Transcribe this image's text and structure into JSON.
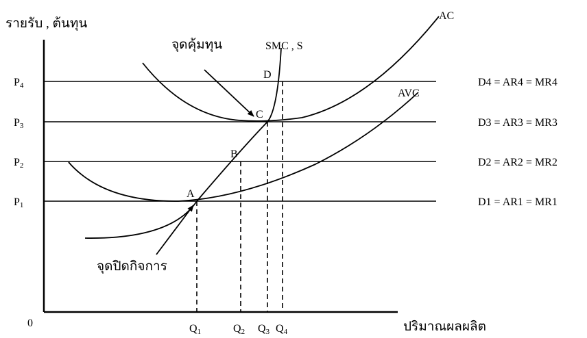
{
  "axes": {
    "y_label": "รายรับ , ต้นทุน",
    "x_label": "ปริมาณผลผลิต",
    "origin": "0"
  },
  "price_levels": [
    {
      "main": "P",
      "sub": "1",
      "line_label": "D1 = AR1 = MR1"
    },
    {
      "main": "P",
      "sub": "2",
      "line_label": "D2 = AR2 = MR2"
    },
    {
      "main": "P",
      "sub": "3",
      "line_label": "D3 = AR3 = MR3"
    },
    {
      "main": "P",
      "sub": "4",
      "line_label": "D4 = AR4 = MR4"
    }
  ],
  "quantities": [
    {
      "main": "Q",
      "sub": "1"
    },
    {
      "main": "Q",
      "sub": "2"
    },
    {
      "main": "Q",
      "sub": "3"
    },
    {
      "main": "Q",
      "sub": "4"
    }
  ],
  "curves": {
    "ac": "AC",
    "avc": "AVC",
    "smc": "SMC , S"
  },
  "points": {
    "a": "A",
    "b": "B",
    "c": "C",
    "d": "D"
  },
  "annotations": {
    "break_even": "จุดคุ้มทุน",
    "shutdown": "จุดปิดกิจการ"
  }
}
